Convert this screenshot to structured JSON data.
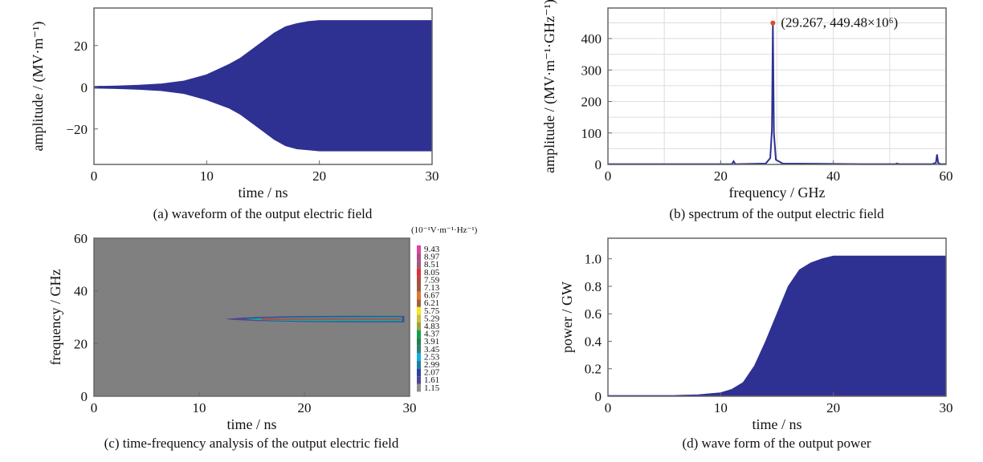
{
  "chart_data": [
    {
      "id": "a",
      "type": "area",
      "title": "(a) waveform of the output electric field",
      "xlabel": "time / ns",
      "ylabel": "amplitude / (MV·m⁻¹)",
      "xlim": [
        0,
        30
      ],
      "ylim": [
        -37,
        38
      ],
      "xticks": [
        "0",
        "10",
        "20",
        "30"
      ],
      "yticks": [
        "−20",
        "0",
        "20"
      ],
      "grid": false,
      "envelope_time_ns": [
        0,
        2,
        4,
        6,
        8,
        10,
        12,
        13,
        14,
        15,
        16,
        17,
        18,
        19,
        20,
        30
      ],
      "envelope_upper": [
        0.4,
        0.6,
        1,
        1.6,
        3,
        6,
        11,
        14,
        18,
        22,
        26,
        29,
        30.5,
        31.5,
        32,
        32
      ],
      "envelope_lower": [
        -0.4,
        -0.6,
        -1,
        -1.6,
        -3,
        -6,
        -10,
        -13,
        -17,
        -21,
        -25,
        -28,
        -29.5,
        -30,
        -30.5,
        -30.5
      ]
    },
    {
      "id": "b",
      "type": "line",
      "title": "(b) spectrum of the output electric field",
      "xlabel": "frequency / GHz",
      "ylabel": "amplitude / (MV·m⁻¹·GHz⁻¹)",
      "xlim": [
        0,
        60
      ],
      "ylim": [
        0,
        497
      ],
      "xticks": [
        "0",
        "20",
        "40",
        "60"
      ],
      "yticks": [
        "0",
        "100",
        "200",
        "300",
        "400"
      ],
      "grid": true,
      "x": [
        0,
        18,
        22,
        22.3,
        22.6,
        28,
        28.8,
        29.1,
        29.267,
        29.45,
        29.8,
        31,
        45,
        51,
        51.3,
        51.6,
        57.5,
        58.2,
        58.4,
        58.6,
        59,
        60
      ],
      "y": [
        1,
        1,
        1,
        10,
        1,
        3,
        20,
        110,
        449.48,
        100,
        15,
        3,
        1,
        1,
        3,
        1,
        1,
        5,
        32,
        5,
        1,
        1
      ],
      "annotation": {
        "x": 29.267,
        "y": 449.48,
        "label": "(29.267, 449.48×10⁶)"
      }
    },
    {
      "id": "c",
      "type": "heatmap",
      "title": "(c) time-frequency analysis of the output electric field",
      "xlabel": "time / ns",
      "ylabel": "frequency / GHz",
      "xlim": [
        0,
        30
      ],
      "ylim": [
        0,
        60
      ],
      "xticks": [
        "0",
        "10",
        "20",
        "30"
      ],
      "yticks": [
        "0",
        "20",
        "40",
        "60"
      ],
      "colorbar_unit": "(10⁻¹V·m⁻¹·Hz⁻¹)",
      "colorbar_labels": [
        "9.43",
        "8.97",
        "8.51",
        "8.05",
        "7.59",
        "7.13",
        "6.67",
        "6.21",
        "5.75",
        "5.29",
        "4.83",
        "4.37",
        "3.91",
        "3.45",
        "2.53",
        "2.99",
        "2.07",
        "1.61",
        "1.15"
      ],
      "colorbar_colors": [
        "#e0449a",
        "#b04c8a",
        "#a05a7a",
        "#e03030",
        "#b04a40",
        "#9a5a40",
        "#e07830",
        "#a06040",
        "#f8e820",
        "#c8c040",
        "#a0a040",
        "#10a050",
        "#208050",
        "#308070",
        "#10b0e0",
        "#2080a0",
        "#3040a0",
        "#504890",
        "#909090"
      ],
      "background_color": "#808080",
      "feature": {
        "time_start_ns": 12.5,
        "time_end_ns": 29.5,
        "frequency_GHz": 29.267
      }
    },
    {
      "id": "d",
      "type": "area",
      "title": "(d) wave form of the output power",
      "xlabel": "time / ns",
      "ylabel": "power / GW",
      "xlim": [
        0,
        30
      ],
      "ylim": [
        0,
        1.15
      ],
      "xticks": [
        "0",
        "10",
        "20",
        "30"
      ],
      "yticks": [
        "0",
        "0.2",
        "0.4",
        "0.6",
        "0.8",
        "1.0"
      ],
      "grid": false,
      "envelope_time_ns": [
        0,
        6,
        8,
        10,
        11,
        12,
        13,
        14,
        15,
        16,
        17,
        18,
        19,
        20,
        30
      ],
      "envelope_upper": [
        0.005,
        0.006,
        0.01,
        0.025,
        0.05,
        0.1,
        0.22,
        0.4,
        0.6,
        0.8,
        0.92,
        0.97,
        1.0,
        1.02,
        1.02
      ]
    }
  ],
  "colors": {
    "series": "#2e3192",
    "peak": "#e04a2a",
    "axis": "#666666",
    "grid": "#dddddd"
  }
}
